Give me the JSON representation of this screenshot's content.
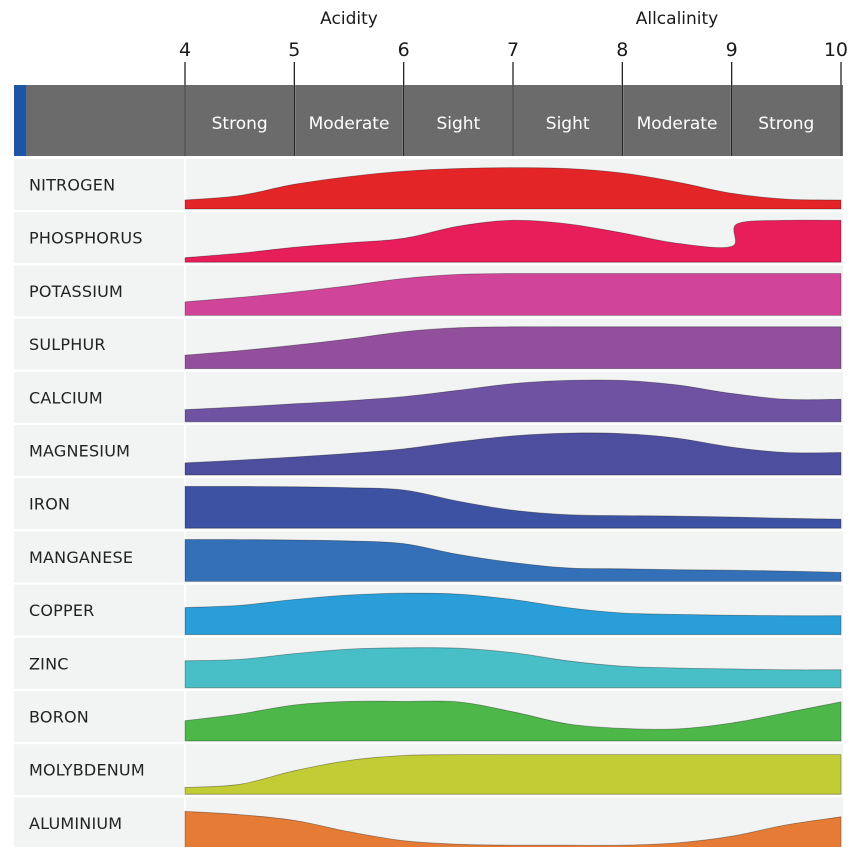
{
  "chart_data": {
    "type": "area",
    "x_axis": {
      "ticks": [
        4,
        5,
        6,
        7,
        8,
        9,
        10
      ],
      "range": [
        4,
        10
      ],
      "group_labels": [
        {
          "label": "Acidity",
          "center": 5.5
        },
        {
          "label": "Allcalinity",
          "center": 8.5
        }
      ],
      "zones": [
        "Strong",
        "Moderate",
        "Sight",
        "Sight",
        "Moderate",
        "Strong"
      ]
    },
    "value_scale": "relative availability, 0 to 1",
    "series": [
      {
        "name": "NITROGEN",
        "color": "#E42527",
        "x": [
          4,
          4.5,
          5,
          5.5,
          6,
          6.5,
          7,
          7.5,
          8,
          8.5,
          9,
          9.5,
          10
        ],
        "y": [
          0.2,
          0.3,
          0.55,
          0.72,
          0.84,
          0.9,
          0.92,
          0.9,
          0.8,
          0.6,
          0.35,
          0.22,
          0.2
        ]
      },
      {
        "name": "PHOSPHORUS",
        "color": "#E81E5A",
        "x": [
          4,
          4.5,
          5,
          5.5,
          6,
          6.5,
          7,
          7.5,
          8,
          8.5,
          9,
          9.05,
          9.5,
          10
        ],
        "y": [
          0.1,
          0.2,
          0.33,
          0.43,
          0.53,
          0.8,
          0.93,
          0.85,
          0.65,
          0.42,
          0.35,
          0.85,
          0.93,
          0.93
        ]
      },
      {
        "name": "POTASSIUM",
        "color": "#D0449A",
        "x": [
          4,
          4.5,
          5,
          5.5,
          6,
          6.5,
          7,
          7.5,
          8,
          8.5,
          9,
          9.5,
          10
        ],
        "y": [
          0.3,
          0.4,
          0.52,
          0.66,
          0.82,
          0.91,
          0.93,
          0.93,
          0.93,
          0.93,
          0.93,
          0.93,
          0.93
        ]
      },
      {
        "name": "SULPHUR",
        "color": "#924F9C",
        "x": [
          4,
          4.5,
          5,
          5.5,
          6,
          6.5,
          7,
          7.5,
          8,
          8.5,
          9,
          9.5,
          10
        ],
        "y": [
          0.3,
          0.4,
          0.52,
          0.66,
          0.82,
          0.91,
          0.93,
          0.93,
          0.93,
          0.93,
          0.93,
          0.93,
          0.93
        ]
      },
      {
        "name": "CALCIUM",
        "color": "#6F52A2",
        "x": [
          4,
          4.5,
          5,
          5.5,
          6,
          6.5,
          7,
          7.5,
          8,
          8.5,
          9,
          9.5,
          10
        ],
        "y": [
          0.27,
          0.33,
          0.4,
          0.47,
          0.56,
          0.7,
          0.85,
          0.92,
          0.92,
          0.82,
          0.63,
          0.5,
          0.5
        ]
      },
      {
        "name": "MAGNESIUM",
        "color": "#4E4E9E",
        "x": [
          4,
          4.5,
          5,
          5.5,
          6,
          6.5,
          7,
          7.5,
          8,
          8.5,
          9,
          9.5,
          10
        ],
        "y": [
          0.27,
          0.33,
          0.4,
          0.48,
          0.58,
          0.74,
          0.87,
          0.93,
          0.92,
          0.82,
          0.62,
          0.5,
          0.5
        ]
      },
      {
        "name": "IRON",
        "color": "#3E52A3",
        "x": [
          4,
          4.5,
          5,
          5.5,
          6,
          6.5,
          7,
          7.5,
          8,
          8.5,
          9,
          9.5,
          10
        ],
        "y": [
          0.93,
          0.93,
          0.92,
          0.9,
          0.85,
          0.6,
          0.4,
          0.3,
          0.28,
          0.27,
          0.25,
          0.22,
          0.2
        ]
      },
      {
        "name": "MANGANESE",
        "color": "#3470B8",
        "x": [
          4,
          4.5,
          5,
          5.5,
          6,
          6.5,
          7,
          7.5,
          8,
          8.5,
          9,
          9.5,
          10
        ],
        "y": [
          0.93,
          0.93,
          0.92,
          0.9,
          0.84,
          0.6,
          0.42,
          0.3,
          0.28,
          0.26,
          0.25,
          0.23,
          0.2
        ]
      },
      {
        "name": "COPPER",
        "color": "#2A9ED9",
        "x": [
          4,
          4.5,
          5,
          5.5,
          6,
          6.5,
          7,
          7.5,
          8,
          8.5,
          9,
          9.5,
          10
        ],
        "y": [
          0.6,
          0.65,
          0.78,
          0.88,
          0.92,
          0.9,
          0.78,
          0.6,
          0.48,
          0.45,
          0.43,
          0.42,
          0.42
        ]
      },
      {
        "name": "ZINC",
        "color": "#48BFC7",
        "x": [
          4,
          4.5,
          5,
          5.5,
          6,
          6.5,
          7,
          7.5,
          8,
          8.5,
          9,
          9.5,
          10
        ],
        "y": [
          0.6,
          0.63,
          0.76,
          0.86,
          0.89,
          0.88,
          0.78,
          0.6,
          0.48,
          0.44,
          0.42,
          0.4,
          0.4
        ]
      },
      {
        "name": "BORON",
        "color": "#4DB749",
        "x": [
          4,
          4.5,
          5,
          5.5,
          6,
          6.5,
          7,
          7.5,
          8,
          8.5,
          9,
          9.5,
          10
        ],
        "y": [
          0.45,
          0.6,
          0.8,
          0.88,
          0.88,
          0.87,
          0.65,
          0.38,
          0.28,
          0.27,
          0.4,
          0.63,
          0.87
        ]
      },
      {
        "name": "MOLYBDENUM",
        "color": "#C2CD35",
        "x": [
          4,
          4.5,
          5,
          5.5,
          6,
          6.5,
          7,
          7.5,
          8,
          8.5,
          9,
          9.5,
          10
        ],
        "y": [
          0.15,
          0.22,
          0.52,
          0.75,
          0.86,
          0.88,
          0.88,
          0.88,
          0.88,
          0.88,
          0.88,
          0.88,
          0.88
        ]
      },
      {
        "name": "ALUMINIUM",
        "color": "#E67B35",
        "x": [
          4,
          4.5,
          5,
          5.5,
          6,
          6.5,
          7,
          7.5,
          8,
          8.5,
          9,
          9.5,
          10
        ],
        "y": [
          0.8,
          0.73,
          0.6,
          0.35,
          0.15,
          0.07,
          0.05,
          0.05,
          0.05,
          0.1,
          0.25,
          0.5,
          0.68
        ]
      }
    ]
  }
}
